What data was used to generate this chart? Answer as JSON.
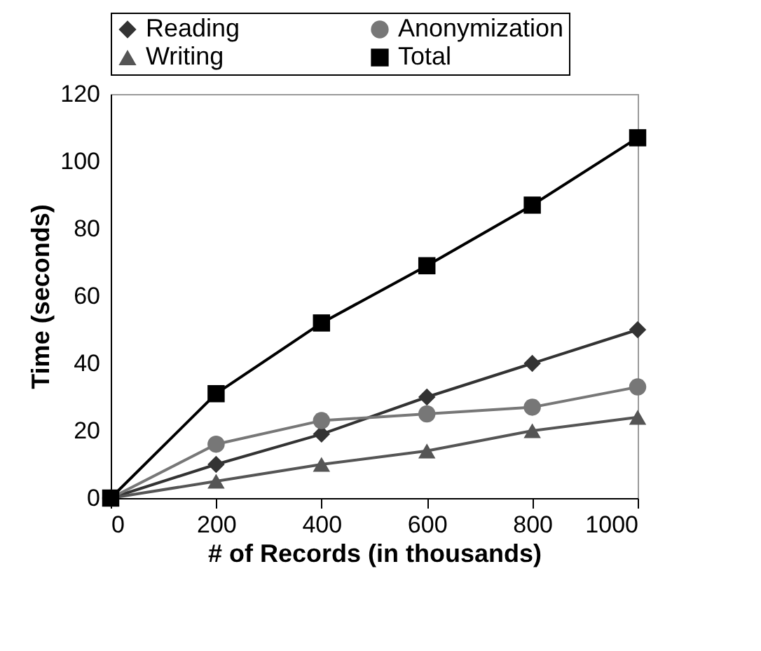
{
  "chart_data": {
    "type": "line",
    "xlabel": "# of Records (in thousands)",
    "ylabel": "Time (seconds)",
    "x": [
      0,
      200,
      400,
      600,
      800,
      1000
    ],
    "xlim": [
      0,
      1000
    ],
    "xticks": [
      0,
      200,
      400,
      600,
      800,
      1000
    ],
    "ylim": [
      0,
      120
    ],
    "yticks": [
      0,
      20,
      40,
      60,
      80,
      100,
      120
    ],
    "grid": false,
    "legend": "top",
    "series": [
      {
        "name": "Reading",
        "color": "#333333",
        "marker": "diamond",
        "values": [
          0,
          10,
          19,
          30,
          40,
          50
        ]
      },
      {
        "name": "Anonymization",
        "color": "#777777",
        "marker": "circle",
        "values": [
          0,
          16,
          23,
          25,
          27,
          33
        ]
      },
      {
        "name": "Writing",
        "color": "#555555",
        "marker": "triangle",
        "values": [
          0,
          5,
          10,
          14,
          20,
          24
        ]
      },
      {
        "name": "Total",
        "color": "#000000",
        "marker": "square",
        "values": [
          0,
          31,
          52,
          69,
          87,
          107
        ]
      }
    ]
  }
}
